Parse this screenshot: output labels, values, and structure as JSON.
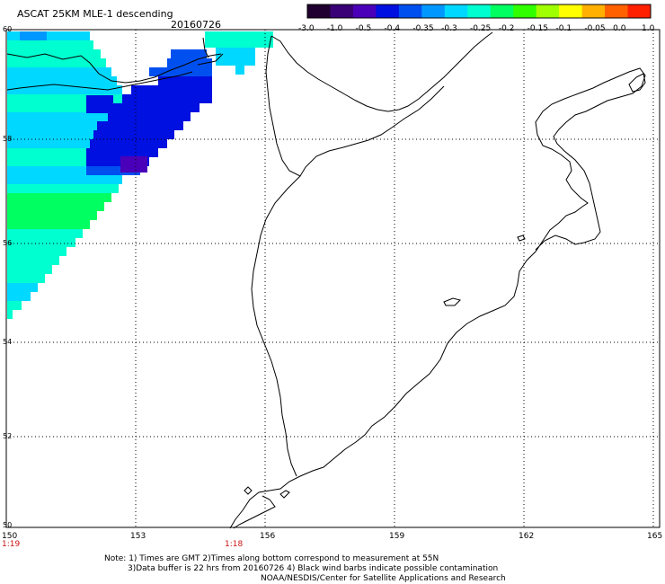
{
  "header": {
    "title": "ASCAT 25KM MLE-1 descending",
    "date": "20160726"
  },
  "colorbar": {
    "colors": [
      "#200030",
      "#3a0075",
      "#4a00b8",
      "#0010e0",
      "#0050f0",
      "#0098ff",
      "#00d8ff",
      "#00ffd0",
      "#00ff60",
      "#30ff00",
      "#a0ff00",
      "#ffff00",
      "#ffb000",
      "#ff6000",
      "#ff2000"
    ],
    "labels": [
      "-3.0",
      "-1.0",
      "-0.5",
      "-0.4",
      "-0.35",
      "-0.3",
      "-0.25",
      "-0.2",
      "-0.15",
      "-0.1",
      "-0.05",
      "0.0",
      "1.0"
    ]
  },
  "axes": {
    "lat_labels": [
      "60",
      "58",
      "56",
      "54",
      "52",
      "50"
    ],
    "lon_labels": [
      "150",
      "153",
      "156",
      "159",
      "162",
      "165"
    ],
    "time_labels": [
      "1:19",
      "1:18"
    ]
  },
  "notes": {
    "line1": "Note: 1) Times are GMT 2)Times along bottom correspond to measurement at 55N",
    "line2": "3)Data buffer is 22 hrs from 20160726 4) Black wind barbs indicate possible contamination",
    "line3": "NOAA/NESDIS/Center for Satellite Applications and Research"
  }
}
